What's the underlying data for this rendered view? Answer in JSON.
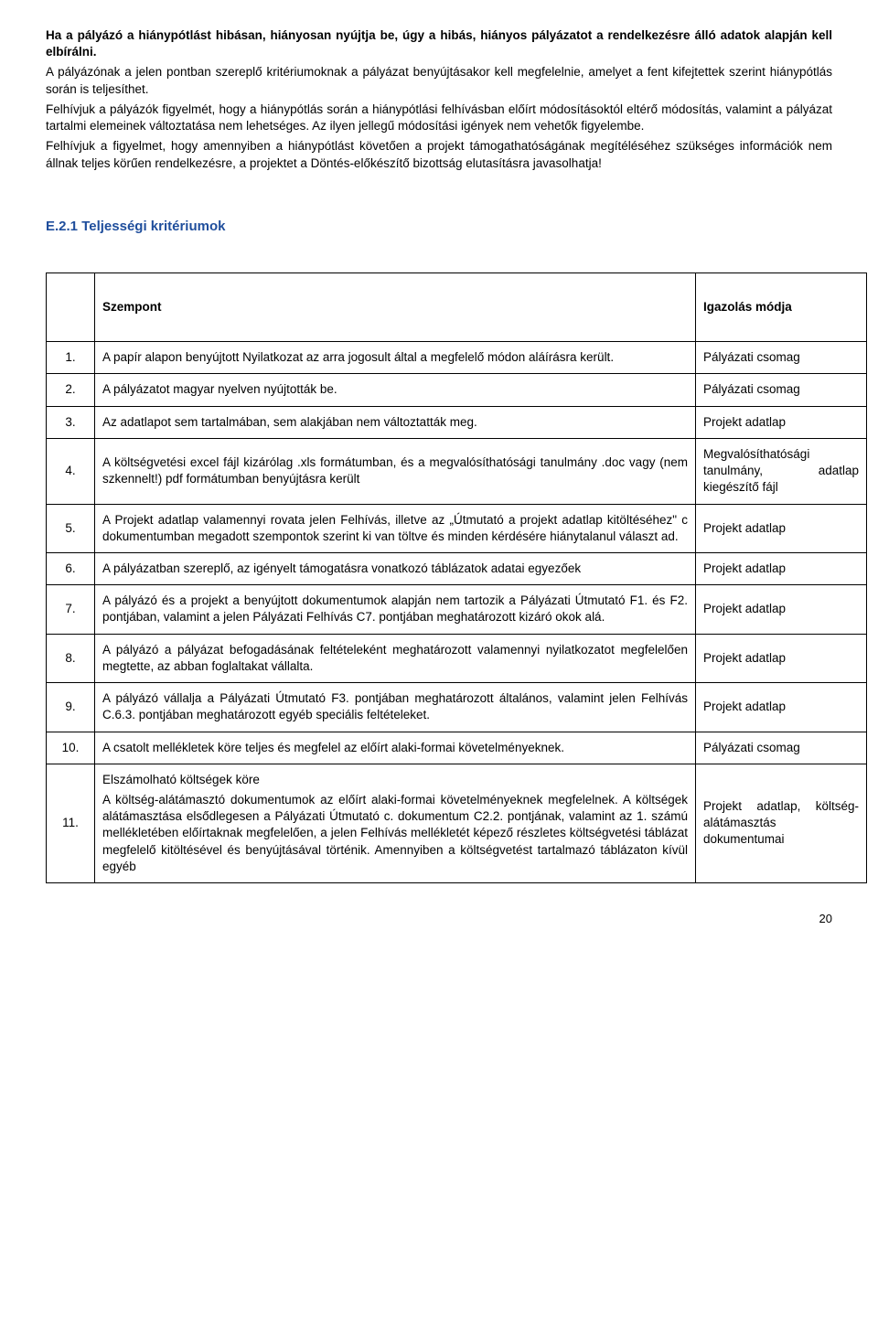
{
  "para1": "Ha a pályázó a hiánypótlást hibásan, hiányosan nyújtja be, úgy a hibás, hiányos pályázatot a rendelkezésre álló adatok alapján kell elbírálni.",
  "para2": "A pályázónak a jelen pontban szereplő kritériumoknak a pályázat benyújtásakor kell megfelelnie, amelyet a fent kifejtettek szerint hiánypótlás során is teljesíthet.",
  "para3": "Felhívjuk a pályázók figyelmét, hogy a hiánypótlás során a hiánypótlási felhívásban előírt módosításoktól eltérő módosítás, valamint a pályázat tartalmi elemeinek változtatása nem lehetséges. Az ilyen jellegű módosítási igények nem vehetők figyelembe.",
  "para4": "Felhívjuk a figyelmet, hogy amennyiben a hiánypótlást követően a projekt támogathatóságának megítéléséhez szükséges információk nem állnak teljes körűen rendelkezésre, a projektet a Döntés-előkészítő bizottság elutasításra javasolhatja!",
  "heading": "E.2.1 Teljességi kritériumok",
  "th_szempont": "Szempont",
  "th_igazolas": "Igazolás módja",
  "rows": [
    {
      "n": "1.",
      "s": "A papír alapon benyújtott Nyilatkozat az arra jogosult által a megfelelő módon aláírásra került.",
      "i": "Pályázati csomag"
    },
    {
      "n": "2.",
      "s": "A pályázatot magyar nyelven nyújtották be.",
      "i": "Pályázati csomag"
    },
    {
      "n": "3.",
      "s": "Az adatlapot sem tartalmában, sem alakjában nem változtatták meg.",
      "i": "Projekt adatlap"
    },
    {
      "n": "4.",
      "s": "A költségvetési excel fájl kizárólag .xls formátumban, és a megvalósíthatósági tanulmány .doc vagy (nem szkennelt!) pdf formátumban benyújtásra került",
      "i": "Megvalósíthatósági tanulmány, adatlap kiegészítő fájl"
    },
    {
      "n": "5.",
      "s": "A Projekt adatlap valamennyi rovata jelen Felhívás, illetve az „Útmutató a projekt adatlap kitöltéséhez\" c dokumentumban megadott szempontok szerint ki van töltve és minden kérdésére hiánytalanul választ ad.",
      "i": "Projekt adatlap"
    },
    {
      "n": "6.",
      "s": "A pályázatban szereplő, az igényelt támogatásra vonatkozó táblázatok adatai egyezőek",
      "i": "Projekt adatlap"
    },
    {
      "n": "7.",
      "s": "A pályázó és a projekt a benyújtott dokumentumok alapján nem tartozik a Pályázati Útmutató F1. és F2. pontjában, valamint a jelen Pályázati Felhívás C7. pontjában meghatározott kizáró okok alá.",
      "i": "Projekt adatlap"
    },
    {
      "n": "8.",
      "s": "A pályázó a pályázat befogadásának feltételeként meghatározott valamennyi nyilatkozatot megfelelően megtette, az abban foglaltakat vállalta.",
      "i": "Projekt adatlap"
    },
    {
      "n": "9.",
      "s": "A pályázó vállalja a Pályázati Útmutató F3. pontjában meghatározott általános, valamint jelen Felhívás C.6.3. pontjában meghatározott egyéb speciális feltételeket.",
      "i": "Projekt adatlap"
    },
    {
      "n": "10.",
      "s": "A csatolt mellékletek köre teljes és megfelel az előírt alaki-formai követelményeknek.",
      "i": "Pályázati csomag"
    },
    {
      "n": "11.",
      "s": "Elszámolható költségek köre\nA költség-alátámasztó dokumentumok az előírt alaki-formai követelményeknek megfelelnek. A költségek alátámasztása elsődlegesen a Pályázati Útmutató c. dokumentum C2.2. pontjának, valamint az 1. számú mellékletében előírtaknak megfelelően, a jelen Felhívás mellékletét képező részletes költségvetési táblázat megfelelő kitöltésével és benyújtásával történik. Amennyiben a költségvetést tartalmazó táblázaton kívül egyéb",
      "i": "Projekt adatlap, költség-alátámasztás dokumentumai"
    }
  ],
  "pagenum": "20"
}
